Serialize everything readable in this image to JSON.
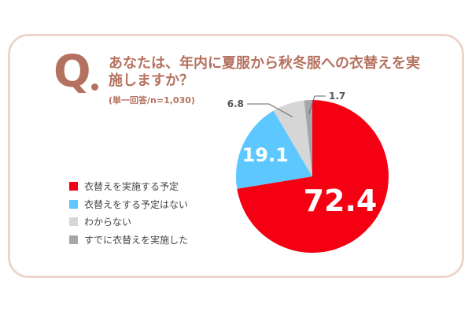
{
  "question": {
    "q_letter": "Q",
    "text": "あなたは、年内に夏服から秋冬服への衣替えを実施しますか？",
    "sample": "(単一回答/n=1,030)"
  },
  "colors": {
    "accent": "#b5715f",
    "border": "#ecd6cc"
  },
  "chart_data": {
    "type": "pie",
    "categories": [
      "衣替えを実施する予定",
      "衣替えをする予定はない",
      "わからない",
      "すでに衣替えを実施した"
    ],
    "values": [
      72.4,
      19.1,
      6.8,
      1.7
    ],
    "value_labels": [
      "72.4",
      "19.1",
      "6.8",
      "1.7"
    ],
    "colors": [
      "#f50012",
      "#5cc8ff",
      "#d6d6d6",
      "#a6a6a6"
    ],
    "label_colors": [
      "#ffffff",
      "#ffffff",
      "#555555",
      "#555555"
    ],
    "start_angle_deg": 0,
    "direction": "clockwise",
    "legend_position": "left"
  }
}
